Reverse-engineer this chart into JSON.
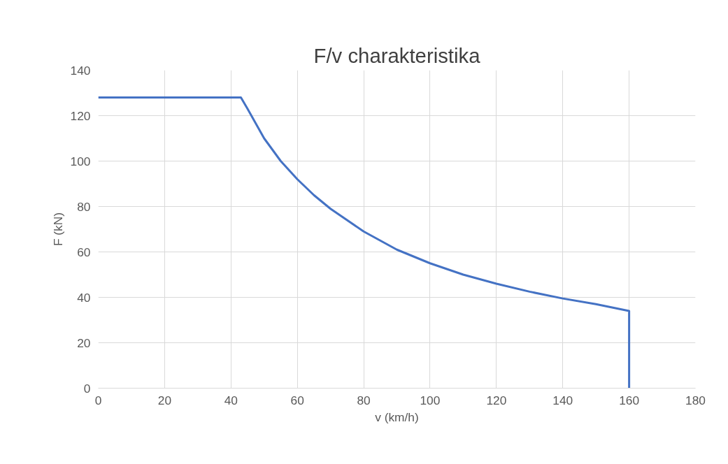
{
  "chart_data": {
    "type": "line",
    "title": "F/v charakteristika",
    "xlabel": "v (km/h)",
    "ylabel": "F (kN)",
    "x": [
      0,
      43,
      45,
      50,
      55,
      60,
      65,
      70,
      80,
      90,
      100,
      110,
      120,
      130,
      140,
      150,
      160,
      160
    ],
    "series": [
      {
        "color": "#4472c4",
        "values": [
          128,
          128,
          123,
          110,
          100,
          92,
          85,
          79,
          69,
          61,
          55,
          50,
          46,
          42.5,
          39.5,
          37,
          34,
          0
        ]
      }
    ],
    "xlim": [
      0,
      180
    ],
    "xticks": [
      0,
      20,
      40,
      60,
      80,
      100,
      120,
      140,
      160,
      180
    ],
    "ylim": [
      0,
      140
    ],
    "yticks": [
      0,
      20,
      40,
      60,
      80,
      100,
      120,
      140
    ],
    "grid": true,
    "marker": "none",
    "line_style": "solid"
  }
}
